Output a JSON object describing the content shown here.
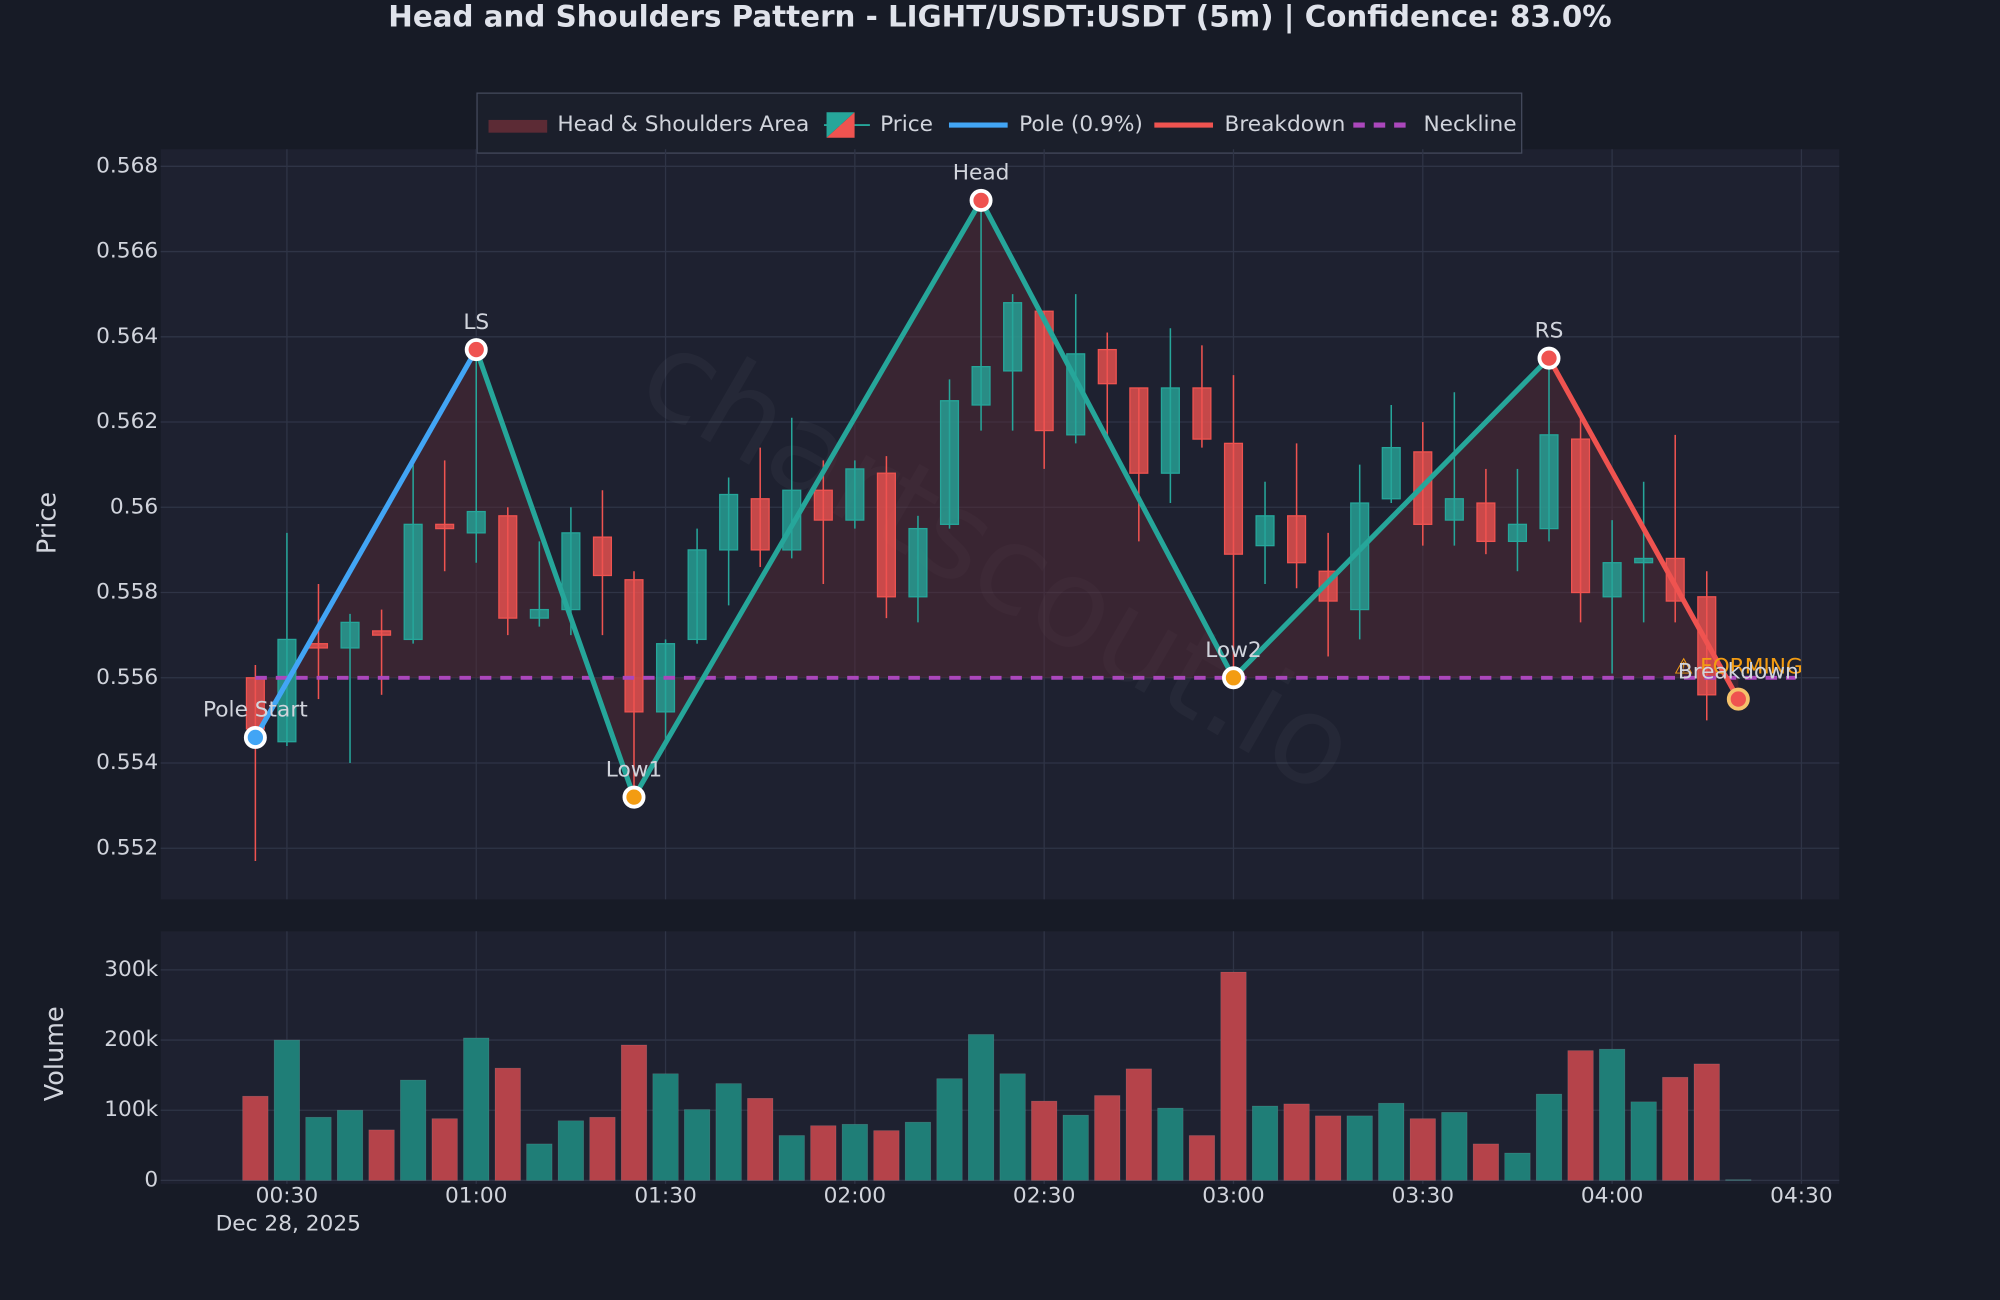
{
  "chart_data": [
    {
      "type": "candlestick",
      "title": "Head and Shoulders Pattern - LIGHT/USDT:USDT (5m) | Confidence: 83.0%",
      "y_label": "Price",
      "watermark": "chartscout.io",
      "x": [
        "00:25",
        "00:30",
        "00:35",
        "00:40",
        "00:45",
        "00:50",
        "00:55",
        "01:00",
        "01:05",
        "01:10",
        "01:15",
        "01:20",
        "01:25",
        "01:30",
        "01:35",
        "01:40",
        "01:45",
        "01:50",
        "01:55",
        "02:00",
        "02:05",
        "02:10",
        "02:15",
        "02:20",
        "02:25",
        "02:30",
        "02:35",
        "02:40",
        "02:45",
        "02:50",
        "02:55",
        "03:00",
        "03:05",
        "03:10",
        "03:15",
        "03:20",
        "03:25",
        "03:30",
        "03:35",
        "03:40",
        "03:45",
        "03:50",
        "03:55",
        "04:00",
        "04:05",
        "04:10",
        "04:15",
        "04:20"
      ],
      "series": [
        {
          "name": "Price",
          "up_color": "#26a69a",
          "down_color": "#ef5350",
          "open": [
            0.556,
            0.5545,
            0.5568,
            0.5567,
            0.5571,
            0.5569,
            0.5596,
            0.5594,
            0.5598,
            0.5574,
            0.5576,
            0.5593,
            0.5583,
            0.5552,
            0.5569,
            0.559,
            0.5602,
            0.559,
            0.5604,
            0.5597,
            0.5608,
            0.5579,
            0.5596,
            0.5624,
            0.5632,
            0.5646,
            0.5617,
            0.5637,
            0.5628,
            0.5608,
            0.5628,
            0.5615,
            0.5591,
            0.5598,
            0.5585,
            0.5576,
            0.5602,
            0.5613,
            0.5597,
            0.5601,
            0.5592,
            0.5595,
            0.5616,
            0.5579,
            0.5587,
            0.5588,
            0.5579,
            0.5556
          ],
          "high": [
            0.5563,
            0.5594,
            0.5582,
            0.5575,
            0.5576,
            0.561,
            0.5611,
            0.5637,
            0.56,
            0.5592,
            0.56,
            0.5604,
            0.5585,
            0.5569,
            0.5595,
            0.5607,
            0.5614,
            0.5621,
            0.5611,
            0.5611,
            0.5612,
            0.5598,
            0.563,
            0.5672,
            0.565,
            0.5646,
            0.565,
            0.5641,
            0.5628,
            0.5642,
            0.5638,
            0.5631,
            0.5606,
            0.5615,
            0.5594,
            0.561,
            0.5624,
            0.562,
            0.5627,
            0.5609,
            0.5609,
            0.5633,
            0.5622,
            0.5597,
            0.5606,
            0.5617,
            0.5585,
            0.5556
          ],
          "low": [
            0.5517,
            0.5544,
            0.5555,
            0.554,
            0.5556,
            0.5568,
            0.5585,
            0.5587,
            0.557,
            0.5572,
            0.557,
            0.557,
            0.5532,
            0.5545,
            0.5568,
            0.5577,
            0.5586,
            0.5588,
            0.5582,
            0.5595,
            0.5574,
            0.5573,
            0.5595,
            0.5618,
            0.5618,
            0.5609,
            0.5615,
            0.5616,
            0.5592,
            0.5601,
            0.5614,
            0.5562,
            0.5582,
            0.5581,
            0.5565,
            0.5569,
            0.5601,
            0.5591,
            0.5591,
            0.5589,
            0.5585,
            0.5592,
            0.5573,
            0.5561,
            0.5573,
            0.5573,
            0.555,
            0.5555
          ],
          "close": [
            0.5548,
            0.5569,
            0.5567,
            0.5573,
            0.557,
            0.5596,
            0.5595,
            0.5599,
            0.5574,
            0.5576,
            0.5594,
            0.5584,
            0.5552,
            0.5568,
            0.559,
            0.5603,
            0.559,
            0.5604,
            0.5597,
            0.5609,
            0.5579,
            0.5595,
            0.5625,
            0.5633,
            0.5648,
            0.5618,
            0.5636,
            0.5629,
            0.5608,
            0.5628,
            0.5616,
            0.5589,
            0.5598,
            0.5587,
            0.5578,
            0.5601,
            0.5614,
            0.5596,
            0.5602,
            0.5592,
            0.5596,
            0.5617,
            0.558,
            0.5587,
            0.5588,
            0.5578,
            0.5556,
            0.5555
          ]
        }
      ],
      "points": [
        {
          "label": "Pole Start",
          "x": "00:25",
          "y": 0.5546,
          "color": "#42a5f5"
        },
        {
          "label": "LS",
          "x": "01:00",
          "y": 0.5637,
          "color": "#ef5350"
        },
        {
          "label": "Low1",
          "x": "01:25",
          "y": 0.5532,
          "color": "#f39c12"
        },
        {
          "label": "Head",
          "x": "02:20",
          "y": 0.5672,
          "color": "#ef5350"
        },
        {
          "label": "Low2",
          "x": "03:00",
          "y": 0.556,
          "color": "#f39c12"
        },
        {
          "label": "RS",
          "x": "03:50",
          "y": 0.5635,
          "color": "#ef5350"
        },
        {
          "label": "Breakdown",
          "x": "04:20",
          "y": 0.5555,
          "color": "#ef5350"
        }
      ],
      "neckline": 0.556,
      "status": "⚠ FORMING",
      "status_color": "#f39c12",
      "overlays": [
        {
          "name": "Head & Shoulders Area",
          "color": "#5c2b35"
        },
        {
          "name": "Pole (0.9%)",
          "color": "#42a5f5"
        },
        {
          "name": "Breakdown",
          "color": "#ef5350"
        },
        {
          "name": "Neckline",
          "color": "#ab47bc"
        }
      ],
      "pattern_color": "#26a69a",
      "ylim": [
        0.5508,
        0.5684
      ],
      "yticks": [
        0.552,
        0.554,
        0.556,
        0.558,
        0.56,
        0.562,
        0.564,
        0.566,
        0.568
      ],
      "grid": true
    },
    {
      "type": "bar",
      "y_label": "Volume",
      "x": [
        "00:25",
        "00:30",
        "00:35",
        "00:40",
        "00:45",
        "00:50",
        "00:55",
        "01:00",
        "01:05",
        "01:10",
        "01:15",
        "01:20",
        "01:25",
        "01:30",
        "01:35",
        "01:40",
        "01:45",
        "01:50",
        "01:55",
        "02:00",
        "02:05",
        "02:10",
        "02:15",
        "02:20",
        "02:25",
        "02:30",
        "02:35",
        "02:40",
        "02:45",
        "02:50",
        "02:55",
        "03:00",
        "03:05",
        "03:10",
        "03:15",
        "03:20",
        "03:25",
        "03:30",
        "03:35",
        "03:40",
        "03:45",
        "03:50",
        "03:55",
        "04:00",
        "04:05",
        "04:10",
        "04:15",
        "04:20"
      ],
      "values": [
        120000,
        200000,
        90000,
        100000,
        72000,
        143000,
        88000,
        203000,
        160000,
        52000,
        85000,
        90000,
        193000,
        152000,
        101000,
        138000,
        117000,
        64000,
        78000,
        80000,
        71000,
        83000,
        145000,
        208000,
        152000,
        113000,
        93000,
        121000,
        159000,
        103000,
        64000,
        297000,
        106000,
        109000,
        92000,
        92000,
        110000,
        88000,
        97000,
        52000,
        39000,
        123000,
        185000,
        187000,
        112000,
        147000,
        166000,
        1000
      ],
      "colors": [
        "#b5434a",
        "#1f7e77",
        "#1f7e77",
        "#1f7e77",
        "#b5434a",
        "#1f7e77",
        "#b5434a",
        "#1f7e77",
        "#b5434a",
        "#1f7e77",
        "#1f7e77",
        "#b5434a",
        "#b5434a",
        "#1f7e77",
        "#1f7e77",
        "#1f7e77",
        "#b5434a",
        "#1f7e77",
        "#b5434a",
        "#1f7e77",
        "#b5434a",
        "#1f7e77",
        "#1f7e77",
        "#1f7e77",
        "#1f7e77",
        "#b5434a",
        "#1f7e77",
        "#b5434a",
        "#b5434a",
        "#1f7e77",
        "#b5434a",
        "#b5434a",
        "#1f7e77",
        "#b5434a",
        "#b5434a",
        "#1f7e77",
        "#1f7e77",
        "#b5434a",
        "#1f7e77",
        "#b5434a",
        "#1f7e77",
        "#1f7e77",
        "#b5434a",
        "#1f7e77",
        "#1f7e77",
        "#b5434a",
        "#b5434a",
        "#1f7e77"
      ],
      "xlim": [
        "00:10",
        "04:36"
      ],
      "xticks": [
        "00:30",
        "01:00",
        "01:30",
        "02:00",
        "02:30",
        "03:00",
        "03:30",
        "04:00",
        "04:30"
      ],
      "x_date": "Dec 28, 2025",
      "ylim": [
        -5000,
        355000
      ],
      "yticks": [
        0,
        {
          "value": 100000,
          "label": "100k"
        },
        {
          "value": 200000,
          "label": "200k"
        },
        {
          "value": 300000,
          "label": "300k"
        }
      ],
      "grid": true
    }
  ]
}
